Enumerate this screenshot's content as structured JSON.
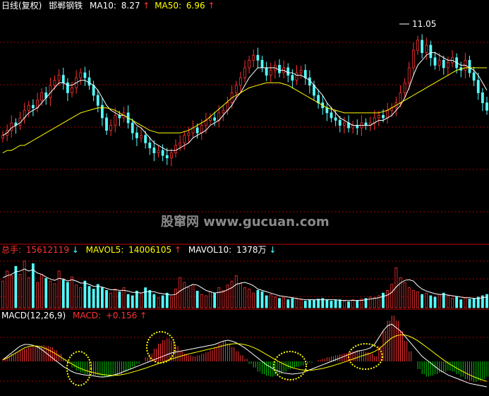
{
  "header": {
    "period": "日线(复权)",
    "stock": "邯郸钢铁",
    "ma10_label": "MA10:",
    "ma10_value": "8.27",
    "ma50_label": "MA50:",
    "ma50_value": "6.96",
    "peak_label": "11.05",
    "up_arrow": "↑"
  },
  "volume_header": {
    "label": "总手:",
    "value": "15612119",
    "down_arrow": "↓",
    "mavol5_label": "MAVOL5:",
    "mavol5_value": "14006105",
    "mavol5_arrow": "↑",
    "mavol10_label": "MAVOL10:",
    "mavol10_value": "1378万",
    "mavol10_arrow": "↓"
  },
  "macd_header": {
    "label": "MACD(12,26,9)",
    "macd_label": "MACD:",
    "macd_value": "+0.156",
    "macd_arrow": "↑"
  },
  "watermark": "股窜网 www.gucuan.com",
  "colors": {
    "up": "#ff3232",
    "down": "#54ffff",
    "ma10": "#ffffff",
    "ma50": "#ffff00",
    "macd_pos": "#ff3232",
    "macd_neg": "#00c800",
    "grid": "#a00000",
    "highlight": "#ffff00"
  },
  "chart_data": {
    "type": "candlestick",
    "price_range": [
      5.4,
      11.6
    ],
    "peak": 11.05,
    "close_series": [
      6.9,
      7.1,
      7.4,
      7.3,
      7.6,
      7.9,
      8.1,
      8.0,
      8.3,
      8.6,
      8.4,
      8.9,
      9.1,
      9.3,
      9.0,
      8.6,
      8.8,
      9.2,
      9.4,
      9.2,
      8.9,
      8.5,
      8.1,
      7.6,
      7.1,
      7.3,
      7.7,
      7.6,
      7.8,
      7.4,
      7.0,
      6.8,
      6.9,
      6.6,
      6.4,
      6.2,
      6.3,
      6.1,
      6.0,
      6.2,
      6.5,
      6.6,
      6.9,
      7.0,
      7.2,
      7.0,
      7.3,
      7.5,
      7.6,
      7.5,
      7.8,
      7.9,
      8.2,
      8.6,
      8.9,
      9.2,
      9.6,
      9.9,
      10.1,
      9.9,
      9.6,
      9.3,
      9.5,
      9.7,
      9.4,
      9.6,
      9.3,
      9.1,
      9.4,
      9.5,
      9.2,
      8.9,
      8.5,
      8.2,
      8.0,
      7.8,
      7.6,
      7.5,
      7.3,
      7.4,
      7.2,
      7.3,
      7.2,
      7.4,
      7.3,
      7.4,
      7.6,
      7.7,
      7.6,
      7.9,
      8.0,
      8.2,
      8.6,
      9.0,
      9.6,
      10.3,
      10.7,
      10.2,
      10.5,
      10.0,
      9.7,
      9.9,
      9.6,
      9.8,
      10.0,
      9.6,
      9.5,
      9.9,
      9.4,
      9.1,
      8.6,
      8.2,
      7.9
    ],
    "ma10_series": [
      6.9,
      7.0,
      7.2,
      7.3,
      7.4,
      7.6,
      7.8,
      7.9,
      8.0,
      8.2,
      8.4,
      8.6,
      8.8,
      9.0,
      9.0,
      8.9,
      8.9,
      9.0,
      9.1,
      9.1,
      9.0,
      8.9,
      8.7,
      8.4,
      8.1,
      7.9,
      7.8,
      7.7,
      7.7,
      7.6,
      7.5,
      7.3,
      7.2,
      7.0,
      6.8,
      6.6,
      6.5,
      6.4,
      6.3,
      6.3,
      6.3,
      6.4,
      6.5,
      6.6,
      6.8,
      6.9,
      7.0,
      7.1,
      7.3,
      7.4,
      7.5,
      7.7,
      7.9,
      8.1,
      8.4,
      8.6,
      8.9,
      9.2,
      9.4,
      9.6,
      9.6,
      9.6,
      9.6,
      9.6,
      9.5,
      9.5,
      9.4,
      9.4,
      9.3,
      9.3,
      9.2,
      9.1,
      8.9,
      8.7,
      8.5,
      8.2,
      8.0,
      7.8,
      7.6,
      7.5,
      7.4,
      7.3,
      7.3,
      7.3,
      7.3,
      7.3,
      7.4,
      7.5,
      7.5,
      7.6,
      7.7,
      7.9,
      8.1,
      8.4,
      8.8,
      9.3,
      9.7,
      9.9,
      10.1,
      10.2,
      10.2,
      10.1,
      10.0,
      9.9,
      9.9,
      9.8,
      9.7,
      9.7,
      9.6,
      9.5,
      9.3,
      9.0,
      8.7
    ],
    "ma50_series": [
      6.2,
      6.3,
      6.3,
      6.4,
      6.5,
      6.5,
      6.6,
      6.7,
      6.8,
      6.9,
      7.0,
      7.1,
      7.2,
      7.3,
      7.4,
      7.5,
      7.6,
      7.7,
      7.8,
      7.85,
      7.9,
      7.95,
      8.0,
      8.0,
      8.0,
      7.95,
      7.9,
      7.8,
      7.7,
      7.6,
      7.5,
      7.4,
      7.3,
      7.2,
      7.1,
      7.05,
      7.0,
      7.0,
      7.0,
      7.0,
      7.0,
      7.0,
      7.05,
      7.1,
      7.2,
      7.3,
      7.4,
      7.5,
      7.65,
      7.8,
      7.95,
      8.1,
      8.25,
      8.4,
      8.5,
      8.6,
      8.7,
      8.8,
      8.85,
      8.9,
      8.95,
      9.0,
      9.0,
      9.0,
      9.0,
      8.95,
      8.9,
      8.8,
      8.7,
      8.6,
      8.5,
      8.4,
      8.3,
      8.2,
      8.1,
      8.0,
      7.95,
      7.9,
      7.85,
      7.8,
      7.8,
      7.8,
      7.8,
      7.8,
      7.8,
      7.8,
      7.8,
      7.8,
      7.85,
      7.9,
      8.0,
      8.1,
      8.2,
      8.3,
      8.4,
      8.5,
      8.6,
      8.7,
      8.8,
      8.9,
      9.0,
      9.1,
      9.2,
      9.3,
      9.4,
      9.5,
      9.55,
      9.6,
      9.6,
      9.6,
      9.6,
      9.6,
      9.6
    ],
    "volume_series": [
      40,
      55,
      48,
      62,
      50,
      70,
      45,
      66,
      38,
      50,
      44,
      40,
      36,
      55,
      42,
      38,
      46,
      34,
      30,
      40,
      32,
      28,
      35,
      30,
      26,
      22,
      28,
      24,
      30,
      20,
      18,
      25,
      22,
      30,
      26,
      20,
      15,
      18,
      22,
      16,
      28,
      45,
      38,
      30,
      35,
      25,
      20,
      18,
      24,
      22,
      30,
      26,
      34,
      40,
      48,
      36,
      30,
      28,
      22,
      26,
      24,
      18,
      20,
      16,
      14,
      15,
      12,
      14,
      13,
      12,
      10,
      12,
      11,
      13,
      14,
      12,
      10,
      11,
      12,
      10,
      9,
      12,
      11,
      13,
      14,
      16,
      15,
      18,
      22,
      26,
      35,
      60,
      45,
      38,
      30,
      26,
      24,
      20,
      22,
      18,
      16,
      20,
      22,
      18,
      14,
      16,
      12,
      15,
      13,
      14,
      16,
      18,
      20
    ],
    "mavol5_series": [
      45,
      48,
      50,
      54,
      55,
      58,
      55,
      57,
      52,
      50,
      46,
      43,
      41,
      44,
      43,
      40,
      42,
      40,
      37,
      37,
      35,
      32,
      32,
      31,
      29,
      27,
      27,
      26,
      26,
      25,
      23,
      23,
      22,
      24,
      24,
      24,
      22,
      21,
      20,
      19,
      20,
      25,
      29,
      32,
      35,
      34,
      30,
      26,
      24,
      22,
      23,
      24,
      27,
      30,
      35,
      37,
      38,
      36,
      33,
      28,
      26,
      24,
      22,
      20,
      18,
      17,
      16,
      15,
      14,
      13,
      12,
      12,
      12,
      12,
      12,
      12,
      12,
      12,
      11,
      11,
      11,
      11,
      11,
      11,
      12,
      13,
      14,
      15,
      17,
      19,
      23,
      31,
      37,
      41,
      42,
      40,
      33,
      28,
      25,
      23,
      21,
      20,
      20,
      19,
      18,
      17,
      16,
      15,
      15,
      14,
      14,
      15,
      16
    ],
    "macd_series": [
      0.05,
      0.1,
      0.15,
      0.18,
      0.22,
      0.25,
      0.28,
      0.3,
      0.31,
      0.32,
      0.3,
      0.28,
      0.22,
      0.15,
      0.05,
      -0.05,
      -0.12,
      -0.18,
      -0.22,
      -0.25,
      -0.26,
      -0.27,
      -0.28,
      -0.3,
      -0.31,
      -0.3,
      -0.28,
      -0.25,
      -0.2,
      -0.15,
      -0.1,
      -0.05,
      0.0,
      0.08,
      0.15,
      0.25,
      0.35,
      0.42,
      0.45,
      0.4,
      0.3,
      0.2,
      0.15,
      0.12,
      0.1,
      0.12,
      0.15,
      0.18,
      0.22,
      0.28,
      0.34,
      0.4,
      0.35,
      0.28,
      0.2,
      0.12,
      0.05,
      -0.05,
      -0.12,
      -0.2,
      -0.25,
      -0.28,
      -0.3,
      -0.28,
      -0.25,
      -0.2,
      -0.15,
      -0.12,
      -0.1,
      -0.08,
      -0.05,
      -0.02,
      0.0,
      0.03,
      0.05,
      0.08,
      0.1,
      0.12,
      0.14,
      0.16,
      0.18,
      0.2,
      0.22,
      0.2,
      0.18,
      0.15,
      0.1,
      0.3,
      0.6,
      0.8,
      0.9,
      0.8,
      0.6,
      0.4,
      0.2,
      0.0,
      -0.15,
      -0.25,
      -0.3,
      -0.28,
      -0.25,
      -0.22,
      -0.2,
      -0.18,
      -0.2,
      -0.25,
      -0.3,
      -0.35,
      -0.38,
      -0.4,
      -0.38,
      -0.35,
      -0.3
    ],
    "dif_series": [
      0.1,
      0.3,
      0.5,
      0.7,
      0.9,
      1.0,
      1.0,
      0.95,
      0.85,
      0.7,
      0.5,
      0.3,
      0.1,
      -0.1,
      -0.3,
      -0.45,
      -0.6,
      -0.7,
      -0.75,
      -0.8,
      -0.82,
      -0.85,
      -0.9,
      -0.92,
      -0.9,
      -0.85,
      -0.78,
      -0.7,
      -0.6,
      -0.5,
      -0.4,
      -0.3,
      -0.2,
      -0.1,
      0.0,
      0.1,
      0.2,
      0.3,
      0.4,
      0.5,
      0.55,
      0.6,
      0.65,
      0.7,
      0.75,
      0.8,
      0.85,
      0.9,
      0.95,
      1.0,
      1.1,
      1.2,
      1.25,
      1.2,
      1.1,
      0.95,
      0.8,
      0.6,
      0.4,
      0.2,
      0.0,
      -0.2,
      -0.35,
      -0.5,
      -0.6,
      -0.68,
      -0.72,
      -0.75,
      -0.72,
      -0.68,
      -0.6,
      -0.5,
      -0.4,
      -0.3,
      -0.2,
      -0.1,
      0.0,
      0.1,
      0.2,
      0.3,
      0.4,
      0.5,
      0.6,
      0.65,
      0.7,
      0.8,
      1.0,
      1.4,
      1.8,
      2.1,
      2.2,
      2.0,
      1.8,
      1.5,
      1.2,
      0.9,
      0.6,
      0.3,
      0.1,
      -0.1,
      -0.3,
      -0.5,
      -0.65,
      -0.8,
      -0.9,
      -1.0,
      -1.1,
      -1.2,
      -1.3,
      -1.35,
      -1.4,
      -1.45,
      -1.5
    ],
    "dea_series": [
      0.1,
      0.2,
      0.35,
      0.5,
      0.65,
      0.8,
      0.88,
      0.92,
      0.9,
      0.84,
      0.75,
      0.62,
      0.48,
      0.32,
      0.16,
      0.0,
      -0.15,
      -0.3,
      -0.42,
      -0.52,
      -0.6,
      -0.66,
      -0.72,
      -0.77,
      -0.8,
      -0.82,
      -0.82,
      -0.8,
      -0.76,
      -0.7,
      -0.63,
      -0.56,
      -0.48,
      -0.4,
      -0.31,
      -0.22,
      -0.13,
      -0.04,
      0.05,
      0.14,
      0.22,
      0.3,
      0.37,
      0.44,
      0.5,
      0.56,
      0.62,
      0.68,
      0.74,
      0.8,
      0.86,
      0.93,
      0.99,
      1.03,
      1.05,
      1.03,
      0.99,
      0.92,
      0.82,
      0.7,
      0.56,
      0.41,
      0.26,
      0.11,
      -0.03,
      -0.16,
      -0.27,
      -0.37,
      -0.44,
      -0.49,
      -0.52,
      -0.52,
      -0.5,
      -0.46,
      -0.41,
      -0.35,
      -0.28,
      -0.2,
      -0.12,
      -0.04,
      0.05,
      0.14,
      0.23,
      0.32,
      0.4,
      0.48,
      0.58,
      0.74,
      0.95,
      1.18,
      1.39,
      1.51,
      1.57,
      1.56,
      1.49,
      1.37,
      1.22,
      1.04,
      0.85,
      0.66,
      0.46,
      0.27,
      0.08,
      -0.09,
      -0.25,
      -0.4,
      -0.54,
      -0.67,
      -0.8,
      -0.91,
      -1.01,
      -1.1,
      -1.18
    ]
  }
}
